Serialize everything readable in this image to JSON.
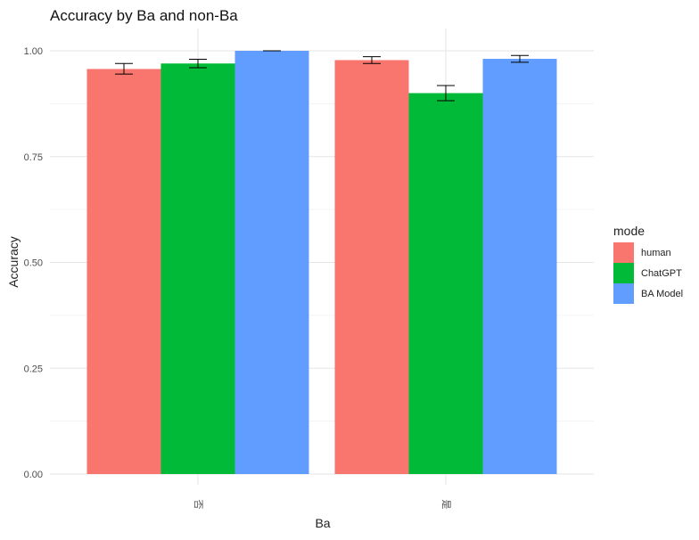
{
  "chart_data": {
    "type": "bar",
    "title": "Accuracy by Ba and non-Ba",
    "xlabel": "Ba",
    "ylabel": "Accuracy",
    "categories": [
      "否",
      "是"
    ],
    "ylim": [
      0,
      1.0
    ],
    "yticks": [
      "0.00",
      "0.25",
      "0.50",
      "0.75",
      "1.00"
    ],
    "series": [
      {
        "name": "human",
        "color": "#F8766D",
        "values": [
          0.957,
          0.978
        ],
        "error_low": [
          0.945,
          0.97
        ],
        "error_high": [
          0.97,
          0.986
        ]
      },
      {
        "name": "ChatGPT",
        "color": "#00BA38",
        "values": [
          0.97,
          0.9
        ],
        "error_low": [
          0.96,
          0.882
        ],
        "error_high": [
          0.98,
          0.918
        ]
      },
      {
        "name": "BA Model",
        "color": "#619CFF",
        "values": [
          1.0,
          0.981
        ],
        "error_low": [
          1.0,
          0.973
        ],
        "error_high": [
          1.0,
          0.989
        ]
      }
    ],
    "legend": {
      "title": "mode",
      "position": "right"
    },
    "grid": true
  }
}
